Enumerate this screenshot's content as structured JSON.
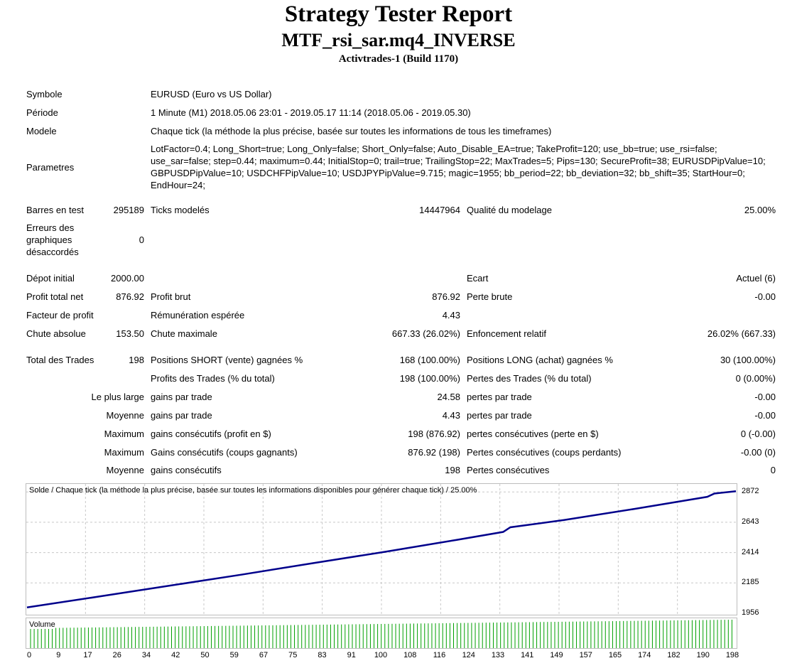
{
  "header": {
    "title": "Strategy Tester Report",
    "expert": "MTF_rsi_sar.mq4_INVERSE",
    "server": "Activtrades-1 (Build 1170)"
  },
  "info": {
    "symbol_label": "Symbole",
    "symbol_value": "EURUSD (Euro vs US Dollar)",
    "period_label": "Période",
    "period_value": "1 Minute (M1) 2018.05.06 23:01 - 2019.05.17 11:14 (2018.05.06 - 2019.05.30)",
    "model_label": "Modele",
    "model_value": "Chaque tick (la méthode la plus précise, basée sur toutes les informations de tous les timeframes)",
    "params_label": "Parametres",
    "params_value": "LotFactor=0.4; Long_Short=true; Long_Only=false; Short_Only=false; Auto_Disable_EA=true; TakeProfit=120; use_bb=true; use_rsi=false; use_sar=false; step=0.44; maximum=0.44; InitialStop=0; trail=true; TrailingStop=22; MaxTrades=5; Pips=130; SecureProfit=38; EURUSDPipValue=10; GBPUSDPipValue=10; USDCHFPipValue=10; USDJPYPipValue=9.715; magic=1955; bb_period=22; bb_deviation=32; bb_shift=35; StartHour=0; EndHour=24;"
  },
  "stats": {
    "bars_label": "Barres en test",
    "bars_value": "295189",
    "ticks_label": "Ticks modelés",
    "ticks_value": "14447964",
    "quality_label": "Qualité du modelage",
    "quality_value": "25.00%",
    "errors_label": "Erreurs des graphiques désaccordés",
    "errors_value": "0",
    "deposit_label": "Dépot initial",
    "deposit_value": "2000.00",
    "spread_label": "Ecart",
    "spread_value": "Actuel (6)",
    "net_label": "Profit total net",
    "net_value": "876.92",
    "gross_profit_label": "Profit brut",
    "gross_profit_value": "876.92",
    "gross_loss_label": "Perte brute",
    "gross_loss_value": "-0.00",
    "pf_label": "Facteur de profit",
    "payoff_label": "Rémunération espérée",
    "payoff_value": "4.43",
    "abs_dd_label": "Chute absolue",
    "abs_dd_value": "153.50",
    "max_dd_label": "Chute maximale",
    "max_dd_value": "667.33 (26.02%)",
    "rel_dd_label": "Enfoncement relatif",
    "rel_dd_value": "26.02% (667.33)"
  },
  "trades": {
    "total_label": "Total des Trades",
    "total_value": "198",
    "short_label": "Positions SHORT (vente) gagnées %",
    "short_value": "168 (100.00%)",
    "long_label": "Positions LONG (achat) gagnées %",
    "long_value": "30 (100.00%)",
    "profit_trades_label": "Profits des Trades (% du total)",
    "profit_trades_value": "198 (100.00%)",
    "loss_trades_label": "Pertes des Trades (% du total)",
    "loss_trades_value": "0 (0.00%)",
    "largest_label": "Le plus large",
    "largest_win_label": "gains par trade",
    "largest_win_value": "24.58",
    "largest_loss_label": "pertes par trade",
    "largest_loss_value": "-0.00",
    "avg_label": "Moyenne",
    "avg_win_label": "gains par trade",
    "avg_win_value": "4.43",
    "avg_loss_label": "pertes par trade",
    "avg_loss_value": "-0.00",
    "max1_label": "Maximum",
    "max_cons_wins_label": "gains consécutifs (profit en $)",
    "max_cons_wins_value": "198 (876.92)",
    "max_cons_losses_label": "pertes consécutives (perte en $)",
    "max_cons_losses_value": "0 (-0.00)",
    "max2_label": "Maximum",
    "max_cons_profit_label": "Gains consécutifs (coups gagnants)",
    "max_cons_profit_value": "876.92 (198)",
    "max_cons_loss_label": "Pertes consécutives (coups perdants)",
    "max_cons_loss_value": "-0.00 (0)",
    "avg2_label": "Moyenne",
    "avg_cons_wins_label": "gains consécutifs",
    "avg_cons_wins_value": "198",
    "avg_cons_losses_label": "Pertes consécutives",
    "avg_cons_losses_value": "0"
  },
  "chart": {
    "caption": "Solde / Chaque tick (la méthode la plus précise, basée sur toutes les informations disponibles pour générer chaque tick) / 25.00%",
    "volume_label": "Volume",
    "line_color": "#00008b",
    "volume_color": "#00a000"
  },
  "chart_data": {
    "type": "line",
    "title": "Solde / Chaque tick (la méthode la plus précise, basée sur toutes les informations disponibles pour générer chaque tick) / 25.00%",
    "ylim": [
      1956,
      2900
    ],
    "y_ticks": [
      "2872",
      "2643",
      "2414",
      "2185",
      "1956"
    ],
    "x_ticks": [
      "0",
      "9",
      "17",
      "26",
      "34",
      "42",
      "50",
      "59",
      "67",
      "75",
      "83",
      "91",
      "100",
      "108",
      "116",
      "124",
      "133",
      "141",
      "149",
      "157",
      "165",
      "174",
      "182",
      "190",
      "198"
    ],
    "series": [
      {
        "name": "Solde",
        "x": [
          0,
          20,
          40,
          60,
          80,
          100,
          120,
          133,
          135,
          150,
          170,
          190,
          192,
          198
        ],
        "y": [
          2000,
          2082,
          2165,
          2248,
          2335,
          2420,
          2510,
          2570,
          2605,
          2660,
          2745,
          2835,
          2860,
          2877
        ]
      }
    ]
  }
}
